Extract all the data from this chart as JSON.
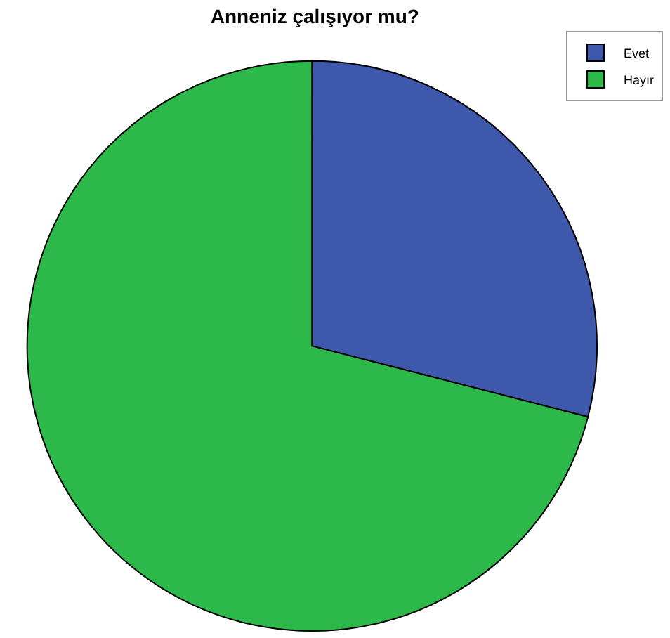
{
  "chart_data": {
    "type": "pie",
    "title": "Anneniz çalışıyor mu?",
    "categories": [
      "Evet",
      "Hayır"
    ],
    "values": [
      29,
      71
    ],
    "colors": [
      "#3e58ac",
      "#2db84a"
    ],
    "legend": "top right"
  }
}
